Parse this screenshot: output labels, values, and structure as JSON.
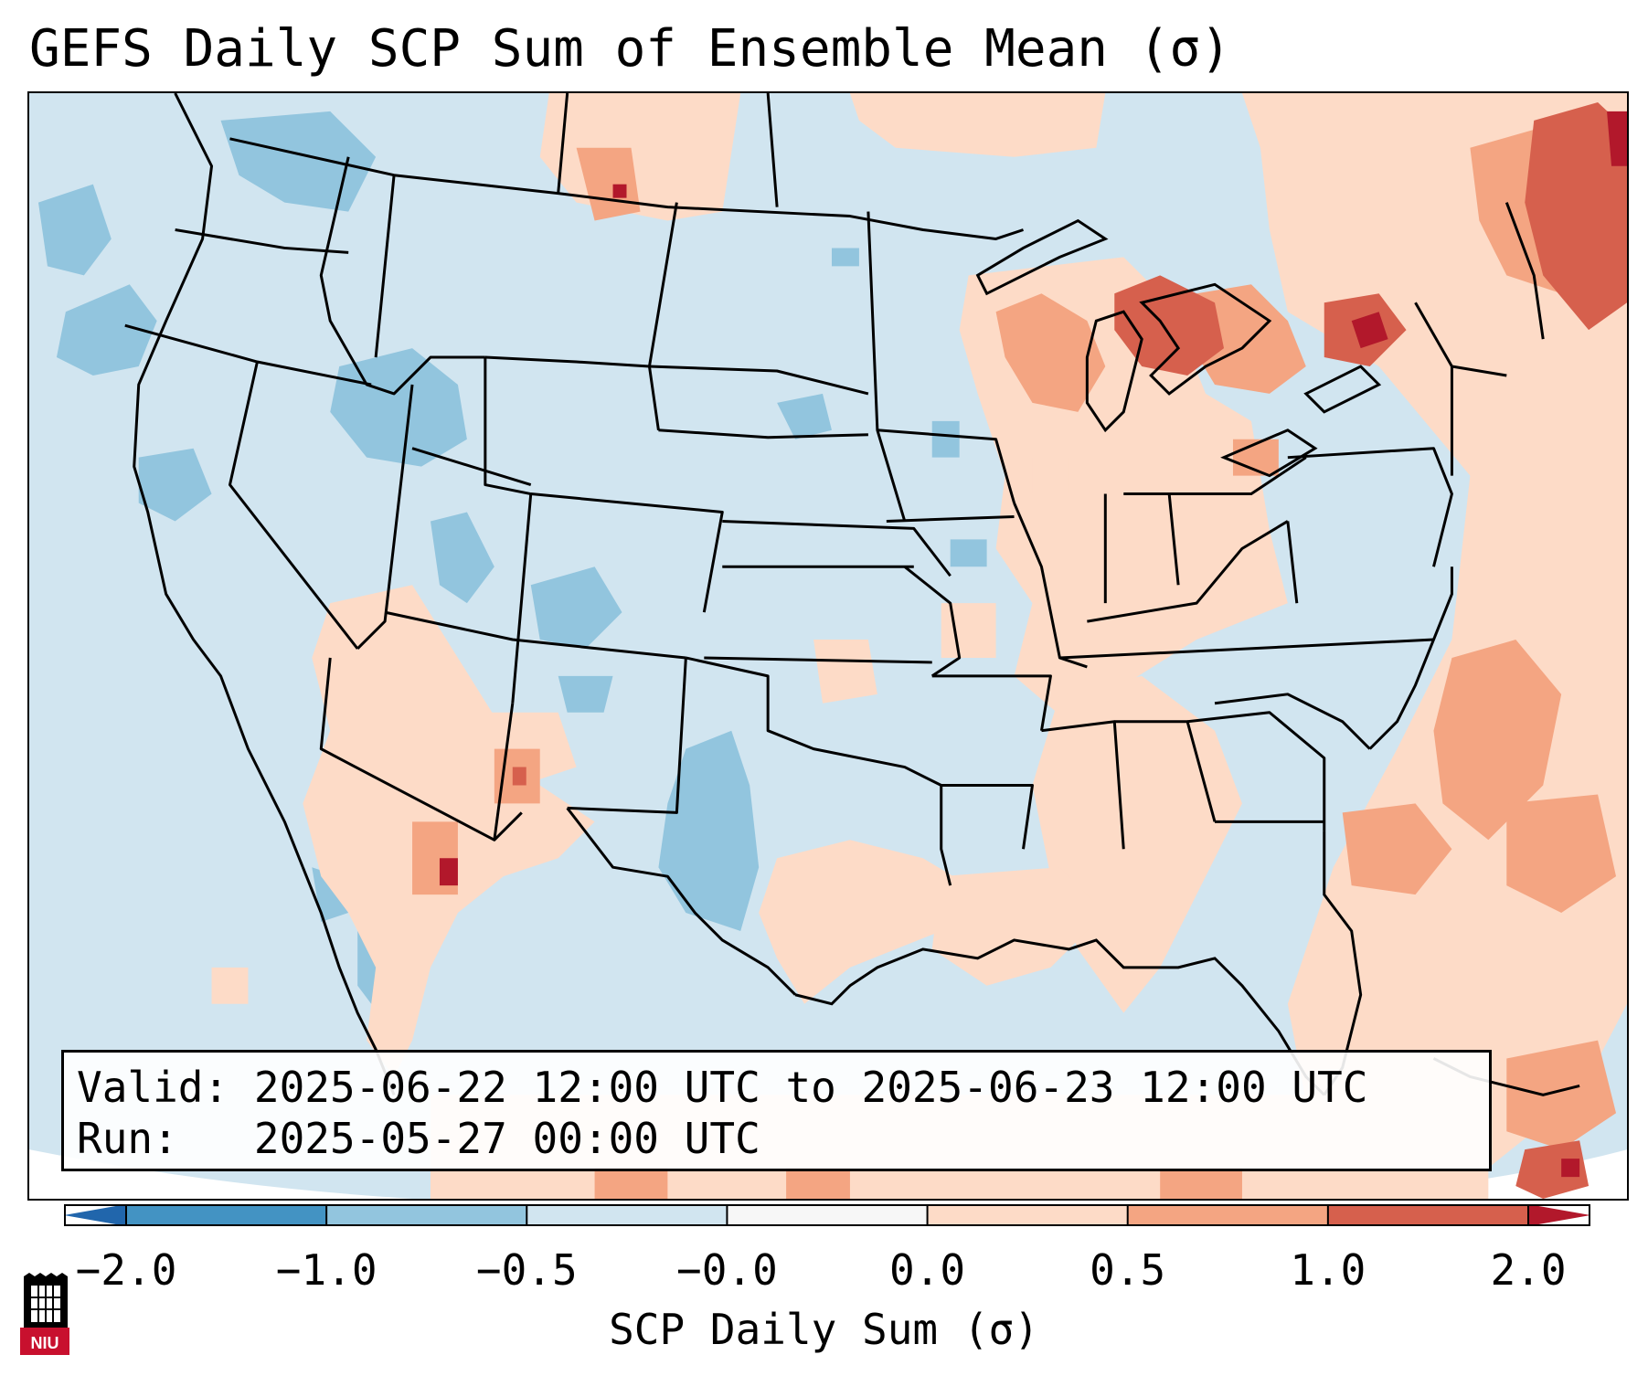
{
  "title": "GEFS Daily SCP Sum of Ensemble Mean (σ)",
  "info": {
    "valid_label": "Valid:",
    "valid_value": "2025-06-22 12:00 UTC to 2025-06-23 12:00 UTC",
    "run_label": "Run:",
    "run_value": "2025-05-27 00:00 UTC"
  },
  "colorbar": {
    "label": "SCP Daily Sum (σ)",
    "ticks": [
      "−2.0",
      "−1.0",
      "−0.5",
      "−0.0",
      "0.0",
      "0.5",
      "1.0",
      "2.0"
    ],
    "colors": [
      "#4393c3",
      "#92c5de",
      "#d1e5f0",
      "#f7f7f7",
      "#fddbc7",
      "#f4a582",
      "#d6604d"
    ],
    "extend_low_color": "#2166ac",
    "extend_high_color": "#b2182b"
  },
  "map": {
    "background_color": "#d1e5f0",
    "region": "Continental United States"
  },
  "logo": {
    "text": "NIU"
  }
}
